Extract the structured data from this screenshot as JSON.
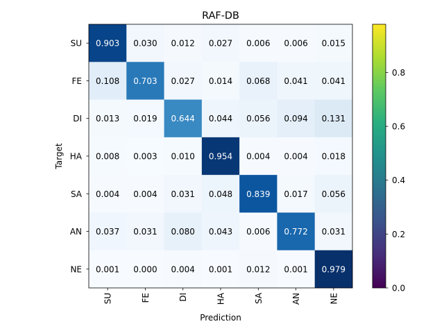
{
  "chart_data": {
    "type": "heatmap",
    "title": "RAF-DB",
    "xlabel": "Prediction",
    "ylabel": "Target",
    "row_labels": [
      "SU",
      "FE",
      "DI",
      "HA",
      "SA",
      "AN",
      "NE"
    ],
    "col_labels": [
      "SU",
      "FE",
      "DI",
      "HA",
      "SA",
      "AN",
      "NE"
    ],
    "values": [
      [
        0.903,
        0.03,
        0.012,
        0.027,
        0.006,
        0.006,
        0.015
      ],
      [
        0.108,
        0.703,
        0.027,
        0.014,
        0.068,
        0.041,
        0.041
      ],
      [
        0.013,
        0.019,
        0.644,
        0.044,
        0.056,
        0.094,
        0.131
      ],
      [
        0.008,
        0.003,
        0.01,
        0.954,
        0.004,
        0.004,
        0.018
      ],
      [
        0.004,
        0.004,
        0.031,
        0.048,
        0.839,
        0.017,
        0.056
      ],
      [
        0.037,
        0.031,
        0.08,
        0.043,
        0.006,
        0.772,
        0.031
      ],
      [
        0.001,
        0.0,
        0.004,
        0.001,
        0.012,
        0.001,
        0.979
      ]
    ],
    "colormap": "Blues",
    "colorbar": {
      "colormap": "viridis",
      "range": [
        0,
        0.979
      ],
      "ticks": [
        0.0,
        0.2,
        0.4,
        0.6,
        0.8
      ],
      "tick_labels": [
        "0.0",
        "0.2",
        "0.4",
        "0.6",
        "0.8"
      ]
    }
  }
}
